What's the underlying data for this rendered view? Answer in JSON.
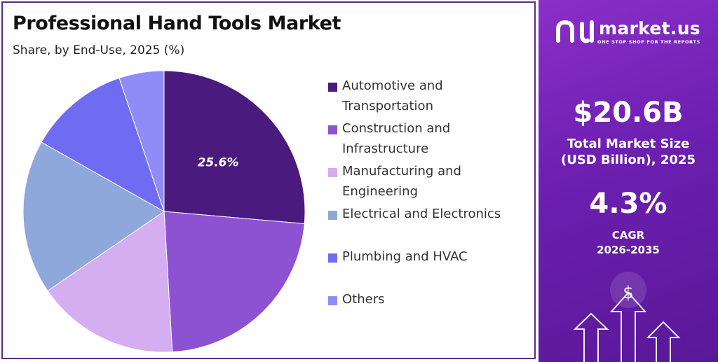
{
  "title": "Professional Hand Tools Market",
  "subtitle": "Share, by End-Use, 2025 (%)",
  "chart_data": {
    "type": "pie",
    "title": "Professional Hand Tools Market",
    "subtitle": "Share, by End-Use, 2025 (%)",
    "legend_position": "right",
    "slices": [
      {
        "label": "Automotive and Transportation",
        "value": 25.6,
        "color": "#4a1a7e",
        "data_label": "25.6%"
      },
      {
        "label": "Construction and Infrastructure",
        "value": 22.0,
        "color": "#8d52d1",
        "data_label": ""
      },
      {
        "label": "Manufacturing and Engineering",
        "value": 15.9,
        "color": "#d4aef0",
        "data_label": ""
      },
      {
        "label": "Electrical and Electronics",
        "value": 17.2,
        "color": "#8fa8dc",
        "data_label": ""
      },
      {
        "label": "Plumbing and HVAC",
        "value": 11.3,
        "color": "#6f6cf2",
        "data_label": ""
      },
      {
        "label": "Others",
        "value": 5.0,
        "color": "#8f8cf8",
        "data_label": ""
      }
    ]
  },
  "legend": {
    "items": [
      {
        "line1": "Automotive and",
        "line2": "Transportation",
        "color": "#4a1a7e"
      },
      {
        "line1": "Construction and",
        "line2": "Infrastructure",
        "color": "#8d52d1"
      },
      {
        "line1": "Manufacturing and",
        "line2": "Engineering",
        "color": "#d4aef0"
      },
      {
        "line1": "Electrical and Electronics",
        "line2": "",
        "color": "#8fa8dc"
      },
      {
        "line1": "Plumbing and HVAC",
        "line2": "",
        "color": "#6f6cf2"
      },
      {
        "line1": "Others",
        "line2": "",
        "color": "#8f8cf8"
      }
    ]
  },
  "brand": {
    "name": "market.us",
    "tagline": "ONE STOP SHOP FOR THE REPORTS",
    "logo_icon": "market-us-logo-icon"
  },
  "stats": {
    "market_size_value": "$20.6B",
    "market_size_label_line1": "Total Market Size",
    "market_size_label_line2": "(USD Billion), 2025",
    "cagr_value": "4.3%",
    "cagr_label_line1": "CAGR",
    "cagr_label_line2": "2026-2035"
  },
  "decor": {
    "dollar_symbol": "$",
    "arrow_icon": "growth-arrows-icon"
  },
  "colors": {
    "panel_gradient_start": "#8a2fc9",
    "panel_gradient_end": "#5a1898",
    "frame_border": "#5b2c8a"
  }
}
